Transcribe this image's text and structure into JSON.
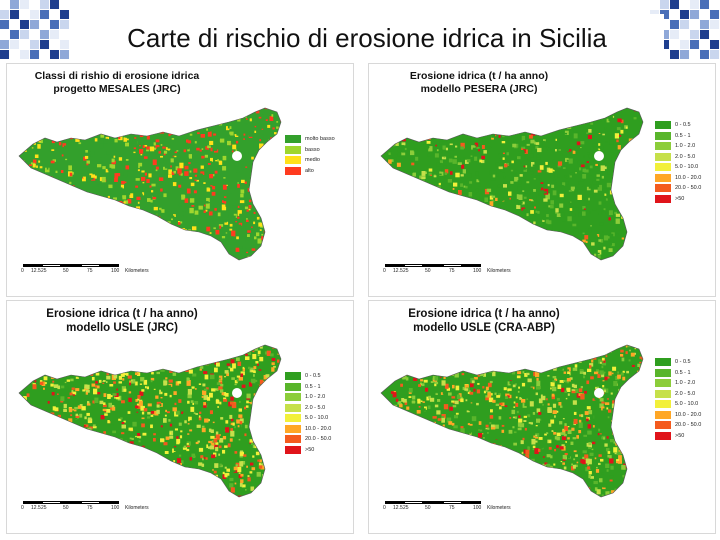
{
  "slide": {
    "title": "Carte di rischio di erosione idrica in Sicilia"
  },
  "panels": [
    {
      "title_lines": [
        "Classi di rishio di erosione idrica",
        "progetto MESALES (JRC)"
      ],
      "legend": [
        {
          "label": "molto basso",
          "color": "#33a02c"
        },
        {
          "label": "basso",
          "color": "#9fd62e"
        },
        {
          "label": "medio",
          "color": "#ffe11a"
        },
        {
          "label": "alto",
          "color": "#ff3b1f"
        }
      ],
      "palette_weights": [
        0.42,
        0.2,
        0.16,
        0.22
      ],
      "scale": {
        "ticks": [
          "0",
          "12.5",
          "25",
          "50",
          "75",
          "100"
        ],
        "unit": "Kilometers"
      }
    },
    {
      "title_lines": [
        "Erosione idrica (t / ha anno)",
        "modello PESERA (JRC)"
      ],
      "legend": [
        {
          "label": "0 - 0.5",
          "color": "#2f9e1f"
        },
        {
          "label": "0.5 - 1",
          "color": "#59b52b"
        },
        {
          "label": "1.0 - 2.0",
          "color": "#8ccd3a"
        },
        {
          "label": "2.0 - 5.0",
          "color": "#c6e04a"
        },
        {
          "label": "5.0 - 10.0",
          "color": "#f2f03a"
        },
        {
          "label": "10.0 - 20.0",
          "color": "#ffa726"
        },
        {
          "label": "20.0 - 50.0",
          "color": "#f45b1e"
        },
        {
          "label": ">50",
          "color": "#e0141a"
        }
      ],
      "palette_weights": [
        0.55,
        0.15,
        0.1,
        0.06,
        0.04,
        0.03,
        0.03,
        0.04
      ],
      "scale": {
        "ticks": [
          "0",
          "12.5",
          "25",
          "50",
          "75",
          "100"
        ],
        "unit": "Kilometers"
      }
    },
    {
      "title_lines": [
        "Erosione idrica (t / ha anno)",
        "modello USLE (JRC)"
      ],
      "legend": [
        {
          "label": "0 - 0.5",
          "color": "#2f9e1f"
        },
        {
          "label": "0.5 - 1",
          "color": "#59b52b"
        },
        {
          "label": "1.0 - 2.0",
          "color": "#8ccd3a"
        },
        {
          "label": "2.0 - 5.0",
          "color": "#c6e04a"
        },
        {
          "label": "5.0 - 10.0",
          "color": "#f2f03a"
        },
        {
          "label": "10.0 - 20.0",
          "color": "#ffa726"
        },
        {
          "label": "20.0 - 50.0",
          "color": "#f45b1e"
        },
        {
          "label": ">50",
          "color": "#e0141a"
        }
      ],
      "palette_weights": [
        0.12,
        0.07,
        0.1,
        0.13,
        0.22,
        0.14,
        0.12,
        0.1
      ],
      "scale": {
        "ticks": [
          "0",
          "12.5",
          "25",
          "50",
          "75",
          "100"
        ],
        "unit": "Kilometers"
      }
    },
    {
      "title_lines": [
        "Erosione idrica (t / ha anno)",
        "modello USLE (CRA-ABP)"
      ],
      "legend": [
        {
          "label": "0 - 0.5",
          "color": "#2f9e1f"
        },
        {
          "label": "0.5 - 1",
          "color": "#59b52b"
        },
        {
          "label": "1.0 - 2.0",
          "color": "#8ccd3a"
        },
        {
          "label": "2.0 - 5.0",
          "color": "#c6e04a"
        },
        {
          "label": "5.0 - 10.0",
          "color": "#f2f03a"
        },
        {
          "label": "10.0 - 20.0",
          "color": "#ffa726"
        },
        {
          "label": "20.0 - 50.0",
          "color": "#f45b1e"
        },
        {
          "label": ">50",
          "color": "#e0141a"
        }
      ],
      "palette_weights": [
        0.12,
        0.14,
        0.16,
        0.14,
        0.12,
        0.12,
        0.12,
        0.08
      ],
      "scale": {
        "ticks": [
          "0",
          "12.5",
          "25",
          "50",
          "75",
          "100"
        ],
        "unit": "Kilometers"
      }
    }
  ]
}
